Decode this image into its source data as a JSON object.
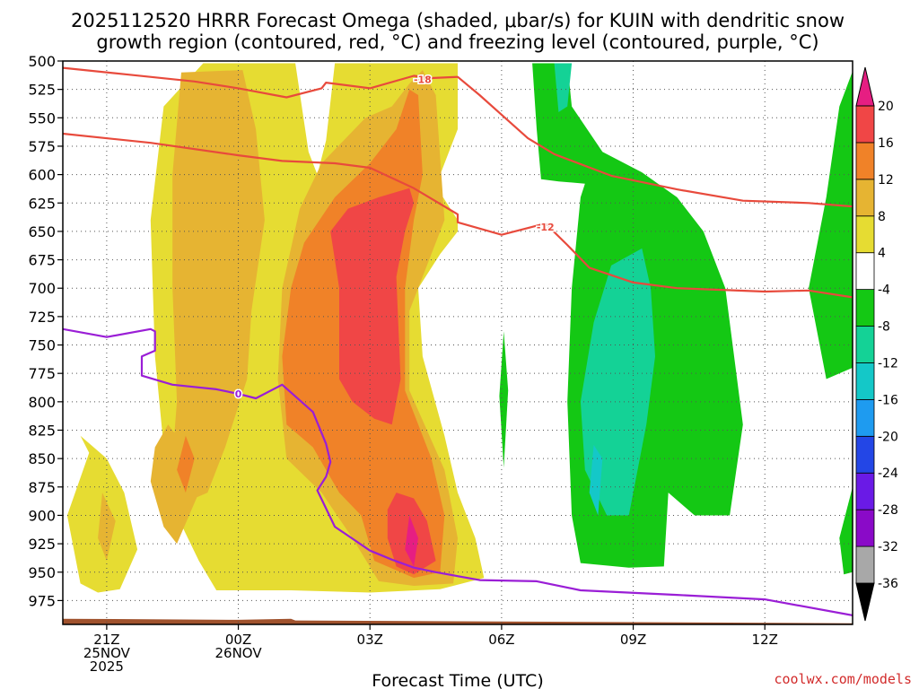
{
  "title": {
    "line1": "2025112520 HRRR Forecast Omega (shaded, μbar/s) for KUIN with dendritic snow",
    "line2": "growth region (contoured, red, °C) and freezing level (contoured, purple, °C)"
  },
  "credit": "coolwx.com/models",
  "chart_data": {
    "type": "heatmap",
    "title": "2025112520 HRRR Forecast Omega (shaded, μbar/s) for KUIN with dendritic snow growth region (contoured, red, °C) and freezing level (contoured, purple, °C)",
    "xlabel": "Forecast Time (UTC)",
    "ylabel": "",
    "x_hours_from_00Z_26NOV": [
      -4,
      14
    ],
    "x_ticks": [
      {
        "hour": -3,
        "lines": [
          "21Z",
          "25NOV",
          "2025"
        ]
      },
      {
        "hour": 0,
        "lines": [
          "00Z",
          "26NOV"
        ]
      },
      {
        "hour": 3,
        "lines": [
          "03Z"
        ]
      },
      {
        "hour": 6,
        "lines": [
          "06Z"
        ]
      },
      {
        "hour": 9,
        "lines": [
          "09Z"
        ]
      },
      {
        "hour": 12,
        "lines": [
          "12Z"
        ]
      }
    ],
    "y_pressure_mb": [
      500,
      996
    ],
    "y_ticks": [
      500,
      525,
      550,
      575,
      600,
      625,
      650,
      675,
      700,
      725,
      750,
      775,
      800,
      825,
      850,
      875,
      900,
      925,
      950,
      975
    ],
    "colorbar": {
      "levels": [
        -36,
        -32,
        -28,
        -24,
        -20,
        -16,
        -12,
        -8,
        -4,
        4,
        8,
        12,
        16,
        20
      ],
      "colors": [
        "#000000",
        "#a8a8a8",
        "#8a0ac8",
        "#6a1ae6",
        "#2346e6",
        "#1e9bf0",
        "#14c8c8",
        "#14d296",
        "#14c814",
        "#ffffff",
        "#e6dc32",
        "#e6b432",
        "#f08228",
        "#f04646",
        "#e61e82"
      ]
    },
    "omega_regions": [
      {
        "color": "#e6dc32",
        "points": [
          [
            -0.8,
            502
          ],
          [
            1.3,
            502
          ],
          [
            1.6,
            580
          ],
          [
            1.8,
            600
          ],
          [
            2.0,
            570
          ],
          [
            2.2,
            502
          ],
          [
            3.9,
            502
          ],
          [
            5.0,
            502
          ],
          [
            5.0,
            560
          ],
          [
            4.5,
            610
          ],
          [
            5.0,
            640
          ],
          [
            5.0,
            650
          ],
          [
            4.6,
            670
          ],
          [
            4.1,
            700
          ],
          [
            4.2,
            760
          ],
          [
            4.7,
            830
          ],
          [
            5.0,
            880
          ],
          [
            5.4,
            920
          ],
          [
            5.6,
            955
          ],
          [
            4.6,
            965
          ],
          [
            3.0,
            968
          ],
          [
            1.2,
            966
          ],
          [
            -0.5,
            966
          ],
          [
            -0.9,
            940
          ],
          [
            -1.4,
            900
          ],
          [
            -1.7,
            840
          ],
          [
            -1.9,
            760
          ],
          [
            -2.0,
            640
          ],
          [
            -1.7,
            540
          ]
        ]
      },
      {
        "color": "#e6dc32",
        "points": [
          [
            -3.4,
            845
          ],
          [
            -3.6,
            830
          ],
          [
            -3.0,
            850
          ],
          [
            -2.6,
            880
          ],
          [
            -2.3,
            930
          ],
          [
            -2.7,
            965
          ],
          [
            -3.2,
            968
          ],
          [
            -3.6,
            960
          ],
          [
            -3.9,
            900
          ]
        ]
      },
      {
        "color": "#e6b432",
        "points": [
          [
            -1.3,
            510
          ],
          [
            0.1,
            508
          ],
          [
            0.4,
            560
          ],
          [
            0.6,
            640
          ],
          [
            0.3,
            720
          ],
          [
            0.2,
            780
          ],
          [
            -0.3,
            840
          ],
          [
            -0.7,
            880
          ],
          [
            -1.3,
            890
          ],
          [
            -1.5,
            850
          ],
          [
            -1.4,
            800
          ],
          [
            -1.5,
            700
          ],
          [
            -1.5,
            600
          ]
        ]
      },
      {
        "color": "#e6b432",
        "points": [
          [
            3.9,
            520
          ],
          [
            4.2,
            508
          ],
          [
            4.5,
            530
          ],
          [
            4.7,
            640
          ],
          [
            3.9,
            720
          ],
          [
            3.9,
            790
          ],
          [
            4.7,
            860
          ],
          [
            5.0,
            920
          ],
          [
            4.9,
            960
          ],
          [
            4.0,
            962
          ],
          [
            3.2,
            958
          ],
          [
            2.6,
            920
          ],
          [
            1.9,
            880
          ],
          [
            1.1,
            850
          ],
          [
            0.9,
            780
          ],
          [
            1.0,
            700
          ],
          [
            1.4,
            630
          ],
          [
            1.9,
            590
          ],
          [
            2.4,
            570
          ],
          [
            2.9,
            550
          ],
          [
            3.5,
            540
          ]
        ]
      },
      {
        "color": "#e6b432",
        "points": [
          [
            -1.6,
            820
          ],
          [
            -1.2,
            840
          ],
          [
            -0.9,
            880
          ],
          [
            -1.4,
            925
          ],
          [
            -1.7,
            910
          ],
          [
            -2.0,
            870
          ],
          [
            -1.9,
            840
          ]
        ]
      },
      {
        "color": "#e6b432",
        "points": [
          [
            -3.1,
            880
          ],
          [
            -2.8,
            905
          ],
          [
            -3.0,
            940
          ],
          [
            -3.2,
            920
          ]
        ]
      },
      {
        "color": "#f08228",
        "points": [
          [
            3.9,
            525
          ],
          [
            4.1,
            530
          ],
          [
            4.2,
            600
          ],
          [
            4.0,
            640
          ],
          [
            3.8,
            700
          ],
          [
            3.8,
            790
          ],
          [
            4.4,
            850
          ],
          [
            4.7,
            900
          ],
          [
            4.6,
            950
          ],
          [
            4.0,
            955
          ],
          [
            3.1,
            940
          ],
          [
            2.8,
            900
          ],
          [
            2.3,
            880
          ],
          [
            1.7,
            840
          ],
          [
            1.1,
            820
          ],
          [
            1.0,
            760
          ],
          [
            1.2,
            700
          ],
          [
            1.5,
            660
          ],
          [
            2.2,
            620
          ],
          [
            3.0,
            590
          ],
          [
            3.6,
            560
          ]
        ]
      },
      {
        "color": "#f08228",
        "points": [
          [
            -1.2,
            830
          ],
          [
            -1.0,
            850
          ],
          [
            -1.2,
            880
          ],
          [
            -1.4,
            860
          ]
        ]
      },
      {
        "color": "#f04646",
        "points": [
          [
            3.9,
            612
          ],
          [
            4.0,
            625
          ],
          [
            3.8,
            650
          ],
          [
            3.6,
            690
          ],
          [
            3.7,
            780
          ],
          [
            3.5,
            820
          ],
          [
            3.1,
            815
          ],
          [
            2.6,
            800
          ],
          [
            2.3,
            780
          ],
          [
            2.3,
            700
          ],
          [
            2.1,
            650
          ],
          [
            2.5,
            630
          ],
          [
            3.2,
            620
          ]
        ]
      },
      {
        "color": "#f04646",
        "points": [
          [
            3.6,
            880
          ],
          [
            4.0,
            885
          ],
          [
            4.3,
            905
          ],
          [
            4.5,
            940
          ],
          [
            4.0,
            952
          ],
          [
            3.6,
            945
          ],
          [
            3.4,
            920
          ],
          [
            3.4,
            895
          ]
        ]
      },
      {
        "color": "#e61e82",
        "points": [
          [
            3.9,
            900
          ],
          [
            4.1,
            920
          ],
          [
            4.0,
            945
          ],
          [
            3.8,
            930
          ]
        ]
      },
      {
        "color": "#14c814",
        "points": [
          [
            6.7,
            502
          ],
          [
            7.5,
            502
          ],
          [
            7.6,
            540
          ],
          [
            8.3,
            580
          ],
          [
            9.2,
            598
          ],
          [
            10.0,
            620
          ],
          [
            10.6,
            650
          ],
          [
            11.1,
            700
          ],
          [
            11.5,
            820
          ],
          [
            11.2,
            900
          ],
          [
            10.4,
            900
          ],
          [
            9.8,
            880
          ],
          [
            9.7,
            945
          ],
          [
            8.9,
            946
          ],
          [
            7.8,
            942
          ],
          [
            7.6,
            900
          ],
          [
            7.5,
            800
          ],
          [
            7.6,
            700
          ],
          [
            7.8,
            620
          ],
          [
            7.9,
            608
          ],
          [
            7.3,
            606
          ],
          [
            6.9,
            604
          ],
          [
            6.8,
            560
          ]
        ]
      },
      {
        "color": "#14c814",
        "points": [
          [
            5.95,
            795
          ],
          [
            6.05,
            738
          ],
          [
            6.15,
            790
          ],
          [
            6.05,
            858
          ]
        ]
      },
      {
        "color": "#14c814",
        "points": [
          [
            14.0,
            509
          ],
          [
            13.7,
            540
          ],
          [
            13.4,
            620
          ],
          [
            13.0,
            700
          ],
          [
            13.4,
            780
          ],
          [
            14.0,
            770
          ]
        ]
      },
      {
        "color": "#14c814",
        "points": [
          [
            14.0,
            875
          ],
          [
            13.7,
            920
          ],
          [
            13.8,
            952
          ],
          [
            14.0,
            950
          ]
        ]
      },
      {
        "color": "#14d296",
        "points": [
          [
            7.2,
            502
          ],
          [
            7.6,
            502
          ],
          [
            7.5,
            540
          ],
          [
            7.3,
            545
          ]
        ]
      },
      {
        "color": "#14d296",
        "points": [
          [
            9.2,
            665
          ],
          [
            9.4,
            700
          ],
          [
            9.5,
            760
          ],
          [
            9.3,
            820
          ],
          [
            8.9,
            900
          ],
          [
            8.4,
            900
          ],
          [
            7.9,
            860
          ],
          [
            7.8,
            800
          ],
          [
            8.1,
            730
          ],
          [
            8.5,
            680
          ]
        ]
      },
      {
        "color": "#14c8c8",
        "points": [
          [
            8.1,
            838
          ],
          [
            8.3,
            850
          ],
          [
            8.2,
            900
          ],
          [
            8.0,
            880
          ]
        ]
      }
    ],
    "contours": [
      {
        "name": "-18",
        "color": "#e84a3c",
        "points": [
          [
            -4,
            506
          ],
          [
            -2.5,
            512
          ],
          [
            -1,
            518
          ],
          [
            0,
            524
          ],
          [
            1.1,
            532
          ],
          [
            1.9,
            524
          ],
          [
            2,
            519
          ],
          [
            3,
            524
          ],
          [
            4,
            513
          ],
          [
            4.4,
            515
          ],
          [
            5,
            514
          ],
          [
            5.5,
            530
          ],
          [
            6.6,
            568
          ],
          [
            7.2,
            582
          ],
          [
            8.5,
            601
          ],
          [
            10,
            613
          ],
          [
            11.5,
            623
          ],
          [
            13,
            625
          ],
          [
            14,
            628
          ]
        ]
      },
      {
        "name": "-12",
        "color": "#e84a3c",
        "points": [
          [
            -4,
            564
          ],
          [
            -2,
            572
          ],
          [
            0,
            583
          ],
          [
            1,
            588
          ],
          [
            2.2,
            590
          ],
          [
            3,
            594
          ],
          [
            4,
            612
          ],
          [
            5,
            635
          ],
          [
            5,
            642
          ],
          [
            6,
            653
          ],
          [
            7,
            643
          ],
          [
            7.5,
            662
          ],
          [
            8,
            682
          ],
          [
            9,
            695
          ],
          [
            10,
            700
          ],
          [
            12,
            703
          ],
          [
            13,
            702
          ],
          [
            14,
            708
          ]
        ]
      },
      {
        "name": "0",
        "color": "#9a1ed6",
        "points": [
          [
            -4,
            736
          ],
          [
            -3,
            743
          ],
          [
            -2,
            736
          ],
          [
            -1.9,
            738
          ],
          [
            -1.9,
            755
          ],
          [
            -2.2,
            760
          ],
          [
            -2.2,
            777
          ],
          [
            -1.5,
            785
          ],
          [
            -0.5,
            789
          ],
          [
            0,
            793
          ],
          [
            0.4,
            797
          ],
          [
            1,
            785
          ],
          [
            1.7,
            809
          ],
          [
            2,
            837
          ],
          [
            2.1,
            853
          ],
          [
            2,
            866
          ],
          [
            1.8,
            878
          ],
          [
            2.2,
            910
          ],
          [
            3,
            931
          ],
          [
            3.5,
            939
          ],
          [
            4,
            946
          ],
          [
            4.5,
            950
          ],
          [
            5.5,
            957
          ],
          [
            6.8,
            958
          ],
          [
            7.8,
            966
          ],
          [
            10,
            970
          ],
          [
            12,
            974
          ],
          [
            14,
            988
          ]
        ]
      }
    ],
    "contour_labels": [
      {
        "text": "-18",
        "hour": 4.2,
        "mb": 516,
        "color": "#e84a3c"
      },
      {
        "text": "-12",
        "hour": 7.0,
        "mb": 646,
        "color": "#e84a3c"
      },
      {
        "text": "0",
        "hour": 0.0,
        "mb": 793,
        "color": "#9a1ed6"
      }
    ],
    "terrain": {
      "color": "#a0522d",
      "points": [
        [
          -4,
          991
        ],
        [
          0,
          992
        ],
        [
          1.2,
          991
        ],
        [
          1.3,
          992.5
        ],
        [
          14,
          995
        ]
      ]
    },
    "grid": true,
    "legend": "colorbar-right"
  }
}
